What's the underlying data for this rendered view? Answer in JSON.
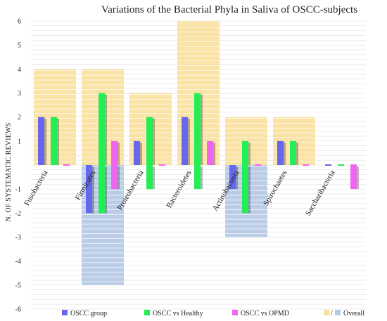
{
  "chart_data": {
    "type": "bar",
    "title": "Variations of the Bacterial Phyla in Saliva of OSCC-subjects",
    "xlabel": "",
    "ylabel": "N. OF SYSTEMATIC REVIEWS",
    "ylim": [
      -6,
      6
    ],
    "yticks": [
      "6",
      "5",
      "4",
      "3",
      "2",
      "1",
      "-1",
      "-2",
      "-3",
      "-4",
      "-5",
      "-6"
    ],
    "grid": true,
    "legend_position": "bottom",
    "categories": [
      "Fusobacteria",
      "Firmicutes",
      "Proteobacteria",
      "Bacteroidetes",
      "Actinobacteria",
      "Spirochaetes",
      "Saccharibacteria"
    ],
    "series": [
      {
        "name": "OSCC group",
        "color": "#6666ee",
        "values": [
          2,
          -2,
          1,
          2,
          -1,
          1,
          0
        ]
      },
      {
        "name": "OSCC vs Healthy",
        "color": "#22ee55",
        "values": [
          2,
          3,
          2,
          3,
          1,
          1,
          0
        ]
      },
      {
        "name": "OSCC vs OPMD",
        "color": "#ee66ee",
        "values": [
          0,
          1,
          0,
          1,
          0,
          0,
          0
        ]
      }
    ],
    "overall": {
      "name": "Overall",
      "positive_color": "#fbe0a0",
      "negative_color": "#b6c9e6",
      "values": [
        4,
        4,
        3,
        6,
        2,
        2,
        0
      ]
    },
    "second_series_negative": [
      0,
      -2,
      -1,
      -1,
      -2,
      0,
      0
    ],
    "third_series_negative": [
      0,
      -1,
      0,
      0,
      0,
      0,
      -1
    ],
    "overall_negative": [
      0,
      -5,
      0,
      0,
      -3,
      0,
      0
    ]
  },
  "legend": {
    "items": [
      "OSCC group",
      "OSCC vs Healthy",
      "OSCC vs OPMD",
      "Overall"
    ],
    "separator": "/"
  }
}
